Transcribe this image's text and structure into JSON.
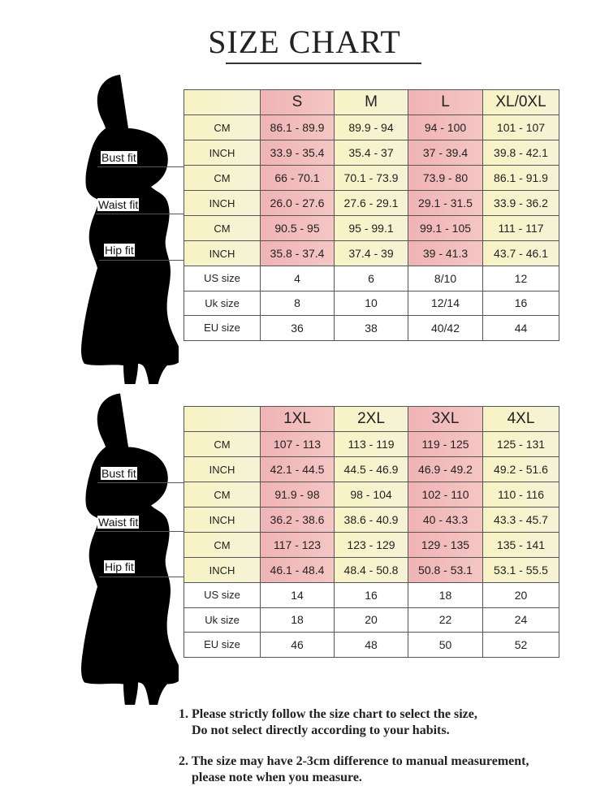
{
  "title": "SIZE CHART",
  "colors": {
    "pink": "#f0b3b5",
    "yellow": "#f7f3c4",
    "border": "#555555"
  },
  "fit_labels": [
    "Bust fit",
    "Waist fit",
    "Hip fit"
  ],
  "tables": [
    {
      "sizes": [
        "S",
        "M",
        "L",
        "XL/0XL"
      ],
      "rows": [
        {
          "label": "CM",
          "values": [
            "86.1 - 89.9",
            "89.9 - 94",
            "94 - 100",
            "101 - 107"
          ]
        },
        {
          "label": "INCH",
          "values": [
            "33.9 - 35.4",
            "35.4 - 37",
            "37 - 39.4",
            "39.8 - 42.1"
          ]
        },
        {
          "label": "CM",
          "values": [
            "66 - 70.1",
            "70.1 - 73.9",
            "73.9 - 80",
            "86.1 - 91.9"
          ]
        },
        {
          "label": "INCH",
          "values": [
            "26.0 - 27.6",
            "27.6 - 29.1",
            "29.1 - 31.5",
            "33.9 - 36.2"
          ]
        },
        {
          "label": "CM",
          "values": [
            "90.5 - 95",
            "95 - 99.1",
            "99.1 - 105",
            "111 - 117"
          ]
        },
        {
          "label": "INCH",
          "values": [
            "35.8 - 37.4",
            "37.4 - 39",
            "39 - 41.3",
            "43.7 - 46.1"
          ]
        },
        {
          "label": "US size",
          "values": [
            "4",
            "6",
            "8/10",
            "12"
          ]
        },
        {
          "label": "Uk size",
          "values": [
            "8",
            "10",
            "12/14",
            "16"
          ]
        },
        {
          "label": "EU size",
          "values": [
            "36",
            "38",
            "40/42",
            "44"
          ]
        }
      ]
    },
    {
      "sizes": [
        "1XL",
        "2XL",
        "3XL",
        "4XL"
      ],
      "rows": [
        {
          "label": "CM",
          "values": [
            "107 - 113",
            "113 - 119",
            "119 - 125",
            "125 - 131"
          ]
        },
        {
          "label": "INCH",
          "values": [
            "42.1 - 44.5",
            "44.5 - 46.9",
            "46.9 - 49.2",
            "49.2 - 51.6"
          ]
        },
        {
          "label": "CM",
          "values": [
            "91.9 - 98",
            "98 - 104",
            "102 - 110",
            "110 - 116"
          ]
        },
        {
          "label": "INCH",
          "values": [
            "36.2 - 38.6",
            "38.6 - 40.9",
            "40 - 43.3",
            "43.3 - 45.7"
          ]
        },
        {
          "label": "CM",
          "values": [
            "117 - 123",
            "123 - 129",
            "129 - 135",
            "135 - 141"
          ]
        },
        {
          "label": "INCH",
          "values": [
            "46.1 - 48.4",
            "48.4 - 50.8",
            "50.8 - 53.1",
            "53.1 - 55.5"
          ]
        },
        {
          "label": "US size",
          "values": [
            "14",
            "16",
            "18",
            "20"
          ]
        },
        {
          "label": "Uk size",
          "values": [
            "18",
            "20",
            "22",
            "24"
          ]
        },
        {
          "label": "EU size",
          "values": [
            "46",
            "48",
            "50",
            "52"
          ]
        }
      ]
    }
  ],
  "notes": [
    {
      "line1": "1.  Please strictly follow the size chart to select the size,",
      "line2": "Do not select directly according to your habits."
    },
    {
      "line1": "2.  The size may have 2-3cm difference  to manual measurement,",
      "line2": "please note when you measure."
    }
  ]
}
